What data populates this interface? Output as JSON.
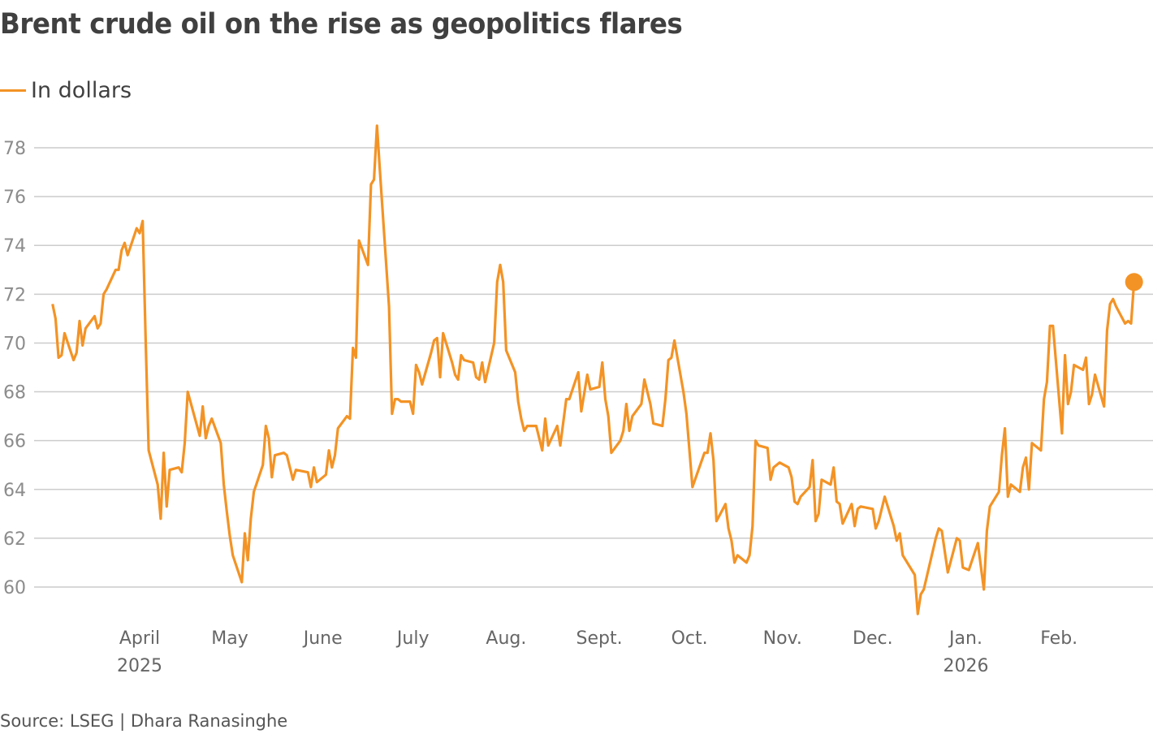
{
  "title": "Brent crude oil on the rise as geopolitics flares",
  "source": "Source: LSEG | Dhara Ranasinghe",
  "colors": {
    "series": "#F39325",
    "grid": "#cccccc",
    "text": "#404040"
  },
  "chart_data": {
    "type": "line",
    "title": "Brent crude oil on the rise as geopolitics flares",
    "xlabel": "",
    "ylabel": "",
    "ylim": [
      59,
      79
    ],
    "grid": true,
    "legend_placement": "top-left",
    "yticks": [
      60,
      62,
      64,
      66,
      68,
      70,
      72,
      74,
      76,
      78
    ],
    "xticks": [
      {
        "date": "2025-04-01",
        "label": "April",
        "year": "2025"
      },
      {
        "date": "2025-05-01",
        "label": "May"
      },
      {
        "date": "2025-06-01",
        "label": "June"
      },
      {
        "date": "2025-07-01",
        "label": "July"
      },
      {
        "date": "2025-08-01",
        "label": "Aug."
      },
      {
        "date": "2025-09-01",
        "label": "Sept."
      },
      {
        "date": "2025-10-01",
        "label": "Oct."
      },
      {
        "date": "2025-11-01",
        "label": "Nov."
      },
      {
        "date": "2025-12-01",
        "label": "Dec."
      },
      {
        "date": "2026-01-01",
        "label": "Jan.",
        "year": "2026"
      },
      {
        "date": "2026-02-01",
        "label": "Feb."
      }
    ],
    "series": [
      {
        "name": "In dollars",
        "end_marker": true,
        "points": [
          [
            "2025-03-03",
            71.6
          ],
          [
            "2025-03-04",
            71.0
          ],
          [
            "2025-03-05",
            69.4
          ],
          [
            "2025-03-06",
            69.5
          ],
          [
            "2025-03-07",
            70.4
          ],
          [
            "2025-03-10",
            69.3
          ],
          [
            "2025-03-11",
            69.6
          ],
          [
            "2025-03-12",
            70.9
          ],
          [
            "2025-03-13",
            69.9
          ],
          [
            "2025-03-14",
            70.6
          ],
          [
            "2025-03-17",
            71.1
          ],
          [
            "2025-03-18",
            70.6
          ],
          [
            "2025-03-19",
            70.8
          ],
          [
            "2025-03-20",
            72.0
          ],
          [
            "2025-03-21",
            72.2
          ],
          [
            "2025-03-24",
            73.0
          ],
          [
            "2025-03-25",
            73.0
          ],
          [
            "2025-03-26",
            73.8
          ],
          [
            "2025-03-27",
            74.1
          ],
          [
            "2025-03-28",
            73.6
          ],
          [
            "2025-03-31",
            74.7
          ],
          [
            "2025-04-01",
            74.5
          ],
          [
            "2025-04-02",
            75.0
          ],
          [
            "2025-04-03",
            70.1
          ],
          [
            "2025-04-04",
            65.6
          ],
          [
            "2025-04-07",
            64.2
          ],
          [
            "2025-04-08",
            62.8
          ],
          [
            "2025-04-09",
            65.5
          ],
          [
            "2025-04-10",
            63.3
          ],
          [
            "2025-04-11",
            64.8
          ],
          [
            "2025-04-14",
            64.9
          ],
          [
            "2025-04-15",
            64.7
          ],
          [
            "2025-04-16",
            65.9
          ],
          [
            "2025-04-17",
            68.0
          ],
          [
            "2025-04-21",
            66.2
          ],
          [
            "2025-04-22",
            67.4
          ],
          [
            "2025-04-23",
            66.1
          ],
          [
            "2025-04-24",
            66.6
          ],
          [
            "2025-04-25",
            66.9
          ],
          [
            "2025-04-28",
            65.9
          ],
          [
            "2025-04-29",
            64.2
          ],
          [
            "2025-04-30",
            63.1
          ],
          [
            "2025-05-01",
            62.1
          ],
          [
            "2025-05-02",
            61.3
          ],
          [
            "2025-05-05",
            60.2
          ],
          [
            "2025-05-06",
            62.2
          ],
          [
            "2025-05-07",
            61.1
          ],
          [
            "2025-05-08",
            62.8
          ],
          [
            "2025-05-09",
            63.9
          ],
          [
            "2025-05-12",
            65.0
          ],
          [
            "2025-05-13",
            66.6
          ],
          [
            "2025-05-14",
            66.1
          ],
          [
            "2025-05-15",
            64.5
          ],
          [
            "2025-05-16",
            65.4
          ],
          [
            "2025-05-19",
            65.5
          ],
          [
            "2025-05-20",
            65.4
          ],
          [
            "2025-05-21",
            64.9
          ],
          [
            "2025-05-22",
            64.4
          ],
          [
            "2025-05-23",
            64.8
          ],
          [
            "2025-05-27",
            64.7
          ],
          [
            "2025-05-28",
            64.1
          ],
          [
            "2025-05-29",
            64.9
          ],
          [
            "2025-05-30",
            64.3
          ],
          [
            "2025-06-02",
            64.6
          ],
          [
            "2025-06-03",
            65.6
          ],
          [
            "2025-06-04",
            64.9
          ],
          [
            "2025-06-05",
            65.4
          ],
          [
            "2025-06-06",
            66.5
          ],
          [
            "2025-06-09",
            67.0
          ],
          [
            "2025-06-10",
            66.9
          ],
          [
            "2025-06-11",
            69.8
          ],
          [
            "2025-06-12",
            69.4
          ],
          [
            "2025-06-13",
            74.2
          ],
          [
            "2025-06-16",
            73.2
          ],
          [
            "2025-06-17",
            76.5
          ],
          [
            "2025-06-18",
            76.7
          ],
          [
            "2025-06-19",
            78.9
          ],
          [
            "2025-06-20",
            77.0
          ],
          [
            "2025-06-23",
            71.5
          ],
          [
            "2025-06-24",
            67.1
          ],
          [
            "2025-06-25",
            67.7
          ],
          [
            "2025-06-26",
            67.7
          ],
          [
            "2025-06-27",
            67.6
          ],
          [
            "2025-06-30",
            67.6
          ],
          [
            "2025-07-01",
            67.1
          ],
          [
            "2025-07-02",
            69.1
          ],
          [
            "2025-07-03",
            68.8
          ],
          [
            "2025-07-04",
            68.3
          ],
          [
            "2025-07-07",
            69.6
          ],
          [
            "2025-07-08",
            70.1
          ],
          [
            "2025-07-09",
            70.2
          ],
          [
            "2025-07-10",
            68.6
          ],
          [
            "2025-07-11",
            70.4
          ],
          [
            "2025-07-14",
            69.2
          ],
          [
            "2025-07-15",
            68.7
          ],
          [
            "2025-07-16",
            68.5
          ],
          [
            "2025-07-17",
            69.5
          ],
          [
            "2025-07-18",
            69.3
          ],
          [
            "2025-07-21",
            69.2
          ],
          [
            "2025-07-22",
            68.6
          ],
          [
            "2025-07-23",
            68.5
          ],
          [
            "2025-07-24",
            69.2
          ],
          [
            "2025-07-25",
            68.4
          ],
          [
            "2025-07-28",
            70.0
          ],
          [
            "2025-07-29",
            72.5
          ],
          [
            "2025-07-30",
            73.2
          ],
          [
            "2025-07-31",
            72.5
          ],
          [
            "2025-08-01",
            69.7
          ],
          [
            "2025-08-04",
            68.8
          ],
          [
            "2025-08-05",
            67.6
          ],
          [
            "2025-08-06",
            66.9
          ],
          [
            "2025-08-07",
            66.4
          ],
          [
            "2025-08-08",
            66.6
          ],
          [
            "2025-08-11",
            66.6
          ],
          [
            "2025-08-13",
            65.6
          ],
          [
            "2025-08-14",
            66.9
          ],
          [
            "2025-08-15",
            65.8
          ],
          [
            "2025-08-18",
            66.6
          ],
          [
            "2025-08-19",
            65.8
          ],
          [
            "2025-08-21",
            67.7
          ],
          [
            "2025-08-22",
            67.7
          ],
          [
            "2025-08-25",
            68.8
          ],
          [
            "2025-08-26",
            67.2
          ],
          [
            "2025-08-28",
            68.7
          ],
          [
            "2025-08-29",
            68.1
          ],
          [
            "2025-09-01",
            68.2
          ],
          [
            "2025-09-02",
            69.2
          ],
          [
            "2025-09-03",
            67.7
          ],
          [
            "2025-09-04",
            67.0
          ],
          [
            "2025-09-05",
            65.5
          ],
          [
            "2025-09-08",
            66.0
          ],
          [
            "2025-09-09",
            66.4
          ],
          [
            "2025-09-10",
            67.5
          ],
          [
            "2025-09-11",
            66.4
          ],
          [
            "2025-09-12",
            67.0
          ],
          [
            "2025-09-15",
            67.5
          ],
          [
            "2025-09-16",
            68.5
          ],
          [
            "2025-09-18",
            67.5
          ],
          [
            "2025-09-19",
            66.7
          ],
          [
            "2025-09-22",
            66.6
          ],
          [
            "2025-09-23",
            67.7
          ],
          [
            "2025-09-24",
            69.3
          ],
          [
            "2025-09-25",
            69.4
          ],
          [
            "2025-09-26",
            70.1
          ],
          [
            "2025-09-29",
            68.0
          ],
          [
            "2025-09-30",
            67.1
          ],
          [
            "2025-10-02",
            64.1
          ],
          [
            "2025-10-06",
            65.5
          ],
          [
            "2025-10-07",
            65.5
          ],
          [
            "2025-10-08",
            66.3
          ],
          [
            "2025-10-09",
            65.2
          ],
          [
            "2025-10-10",
            62.7
          ],
          [
            "2025-10-13",
            63.4
          ],
          [
            "2025-10-14",
            62.4
          ],
          [
            "2025-10-15",
            61.9
          ],
          [
            "2025-10-16",
            61.0
          ],
          [
            "2025-10-17",
            61.3
          ],
          [
            "2025-10-20",
            61.0
          ],
          [
            "2025-10-21",
            61.3
          ],
          [
            "2025-10-22",
            62.5
          ],
          [
            "2025-10-23",
            66.0
          ],
          [
            "2025-10-24",
            65.8
          ],
          [
            "2025-10-27",
            65.7
          ],
          [
            "2025-10-28",
            64.4
          ],
          [
            "2025-10-29",
            64.9
          ],
          [
            "2025-10-31",
            65.1
          ],
          [
            "2025-11-03",
            64.9
          ],
          [
            "2025-11-04",
            64.5
          ],
          [
            "2025-11-05",
            63.5
          ],
          [
            "2025-11-06",
            63.4
          ],
          [
            "2025-11-07",
            63.7
          ],
          [
            "2025-11-10",
            64.1
          ],
          [
            "2025-11-11",
            65.2
          ],
          [
            "2025-11-12",
            62.7
          ],
          [
            "2025-11-13",
            63.0
          ],
          [
            "2025-11-14",
            64.4
          ],
          [
            "2025-11-17",
            64.2
          ],
          [
            "2025-11-18",
            64.9
          ],
          [
            "2025-11-19",
            63.5
          ],
          [
            "2025-11-20",
            63.4
          ],
          [
            "2025-11-21",
            62.6
          ],
          [
            "2025-11-24",
            63.4
          ],
          [
            "2025-11-25",
            62.5
          ],
          [
            "2025-11-26",
            63.2
          ],
          [
            "2025-11-27",
            63.3
          ],
          [
            "2025-12-01",
            63.2
          ],
          [
            "2025-12-02",
            62.4
          ],
          [
            "2025-12-03",
            62.7
          ],
          [
            "2025-12-05",
            63.7
          ],
          [
            "2025-12-08",
            62.5
          ],
          [
            "2025-12-09",
            61.9
          ],
          [
            "2025-12-10",
            62.2
          ],
          [
            "2025-12-11",
            61.3
          ],
          [
            "2025-12-15",
            60.5
          ],
          [
            "2025-12-16",
            58.9
          ],
          [
            "2025-12-17",
            59.7
          ],
          [
            "2025-12-18",
            59.9
          ],
          [
            "2025-12-22",
            62.0
          ],
          [
            "2025-12-23",
            62.4
          ],
          [
            "2025-12-24",
            62.3
          ],
          [
            "2025-12-26",
            60.6
          ],
          [
            "2025-12-29",
            62.0
          ],
          [
            "2025-12-30",
            61.9
          ],
          [
            "2025-12-31",
            60.8
          ],
          [
            "2026-01-02",
            60.7
          ],
          [
            "2026-01-05",
            61.8
          ],
          [
            "2026-01-07",
            59.9
          ],
          [
            "2026-01-08",
            62.3
          ],
          [
            "2026-01-09",
            63.3
          ],
          [
            "2026-01-12",
            63.9
          ],
          [
            "2026-01-13",
            65.4
          ],
          [
            "2026-01-14",
            66.5
          ],
          [
            "2026-01-15",
            63.7
          ],
          [
            "2026-01-16",
            64.2
          ],
          [
            "2026-01-19",
            63.9
          ],
          [
            "2026-01-20",
            64.9
          ],
          [
            "2026-01-21",
            65.3
          ],
          [
            "2026-01-22",
            64.0
          ],
          [
            "2026-01-23",
            65.9
          ],
          [
            "2026-01-26",
            65.6
          ],
          [
            "2026-01-27",
            67.7
          ],
          [
            "2026-01-28",
            68.4
          ],
          [
            "2026-01-29",
            70.7
          ],
          [
            "2026-01-30",
            70.7
          ],
          [
            "2026-02-02",
            66.3
          ],
          [
            "2026-02-03",
            69.5
          ],
          [
            "2026-02-04",
            67.5
          ],
          [
            "2026-02-05",
            68.0
          ],
          [
            "2026-02-06",
            69.1
          ],
          [
            "2026-02-09",
            68.9
          ],
          [
            "2026-02-10",
            69.4
          ],
          [
            "2026-02-11",
            67.5
          ],
          [
            "2026-02-12",
            67.9
          ],
          [
            "2026-02-13",
            68.7
          ],
          [
            "2026-02-16",
            67.4
          ],
          [
            "2026-02-17",
            70.5
          ],
          [
            "2026-02-18",
            71.6
          ],
          [
            "2026-02-19",
            71.8
          ],
          [
            "2026-02-20",
            71.5
          ],
          [
            "2026-02-23",
            70.8
          ],
          [
            "2026-02-24",
            70.9
          ],
          [
            "2026-02-25",
            70.8
          ],
          [
            "2026-02-26",
            72.5
          ]
        ]
      }
    ]
  }
}
